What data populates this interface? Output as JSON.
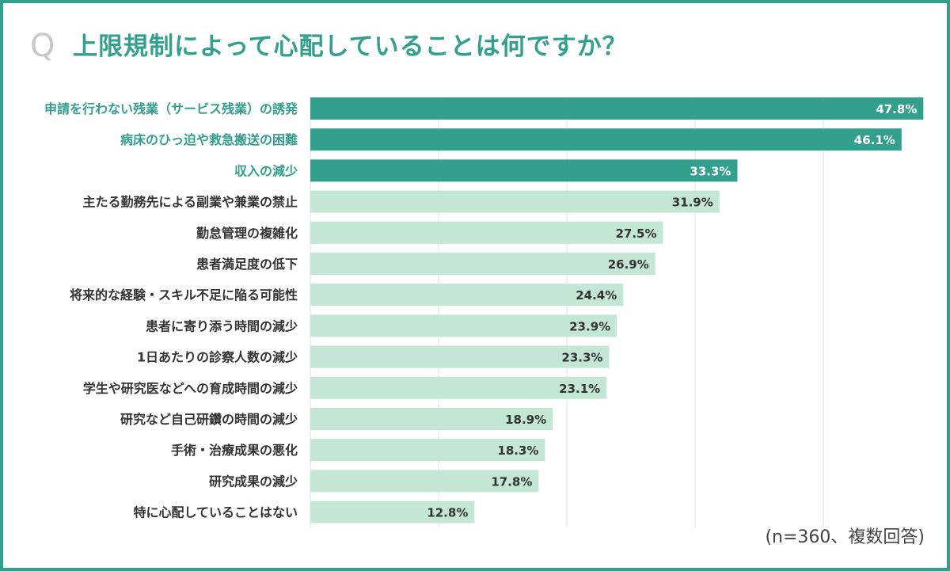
{
  "header": {
    "q_mark": "Q",
    "title": "上限規制によって心配していることは何ですか？"
  },
  "footnote": "(n=360、複数回答)",
  "colors": {
    "accent": "#33a08e",
    "light_bar": "#c3e6d5",
    "label_highlight": "#33a08e",
    "label_normal": "#333333",
    "value_on_dark": "#ffffff",
    "value_on_light": "#333333",
    "grid": "#e3e3e3",
    "border": "#33a08e"
  },
  "chart_data": {
    "type": "bar",
    "orientation": "horizontal",
    "title": "上限規制によって心配していることは何ですか？",
    "xlabel": "",
    "ylabel": "",
    "xlim": [
      0,
      50
    ],
    "grid": true,
    "unit": "%",
    "highlight_top_n": 3,
    "categories": [
      "申請を行わない残業（サービス残業）の誘発",
      "病床のひっ迫や救急搬送の困難",
      "収入の減少",
      "主たる勤務先による副業や兼業の禁止",
      "勤怠管理の複雑化",
      "患者満足度の低下",
      "将来的な経験・スキル不足に陥る可能性",
      "患者に寄り添う時間の減少",
      "1日あたりの診察人数の減少",
      "学生や研究医などへの育成時間の減少",
      "研究など自己研鑽の時間の減少",
      "手術・治療成果の悪化",
      "研究成果の減少",
      "特に心配していることはない"
    ],
    "values": [
      47.8,
      46.1,
      33.3,
      31.9,
      27.5,
      26.9,
      24.4,
      23.9,
      23.3,
      23.1,
      18.9,
      18.3,
      17.8,
      12.8
    ],
    "value_labels": [
      "47.8%",
      "46.1%",
      "33.3%",
      "31.9%",
      "27.5%",
      "26.9%",
      "24.4%",
      "23.9%",
      "23.3%",
      "23.1%",
      "18.9%",
      "18.3%",
      "17.8%",
      "12.8%"
    ]
  }
}
